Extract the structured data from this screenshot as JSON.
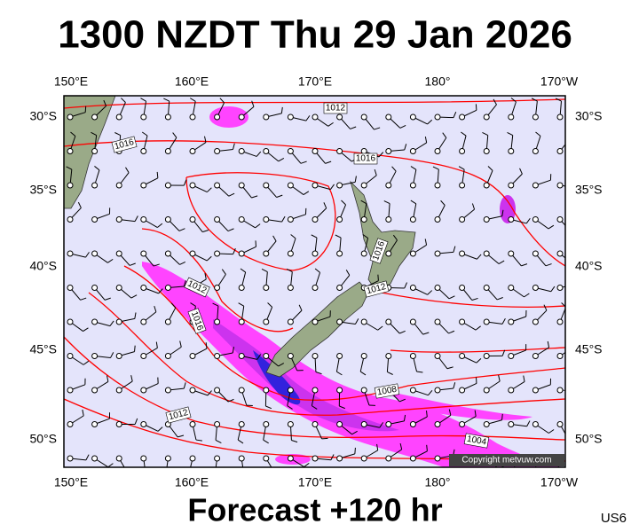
{
  "header": {
    "title": "1300 NZDT Thu 29 Jan 2026"
  },
  "axes": {
    "longitudes": [
      "150°E",
      "160°E",
      "170°E",
      "180°",
      "170°W"
    ],
    "latitudes": [
      "30°S",
      "35°S",
      "40°S",
      "45°S",
      "50°S"
    ]
  },
  "isobar_labels": [
    "1012",
    "1016",
    "1016",
    "1016",
    "1012",
    "1016",
    "1012",
    "1008",
    "1012",
    "1004"
  ],
  "copyright": "Copyright metvuw.com",
  "footer": {
    "forecast": "Forecast +120 hr",
    "code": "US6"
  }
}
